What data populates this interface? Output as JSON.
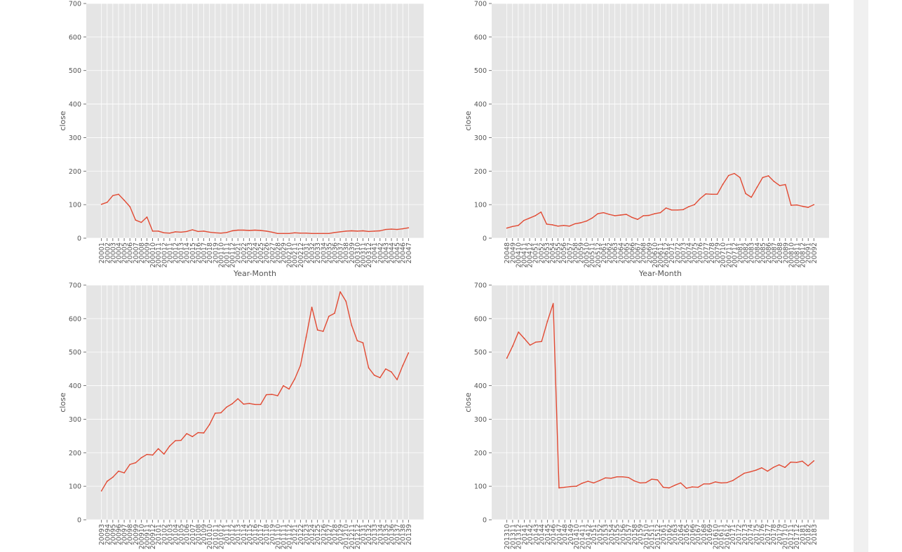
{
  "chart_data": [
    {
      "type": "line",
      "xlabel": "Year-Month",
      "ylabel": "close",
      "ylim": [
        0,
        700
      ],
      "yticks": [
        0,
        100,
        200,
        300,
        400,
        500,
        600,
        700
      ],
      "grid": true,
      "color": "#e24a33",
      "x": [
        "20001",
        "20002",
        "20003",
        "20004",
        "20005",
        "20006",
        "20007",
        "20008",
        "20009",
        "200010",
        "200011",
        "200012",
        "20011",
        "20012",
        "20013",
        "20014",
        "20015",
        "20016",
        "20017",
        "20018",
        "20019",
        "200110",
        "200111",
        "200112",
        "20021",
        "20022",
        "20023",
        "20024",
        "20025",
        "20026",
        "20027",
        "20028",
        "20029",
        "200210",
        "200211",
        "200212",
        "20031",
        "20032",
        "20033",
        "20034",
        "20035",
        "20036",
        "20037",
        "20038",
        "20039",
        "200310",
        "200311",
        "200312",
        "20041",
        "20042",
        "20043",
        "20044",
        "20045",
        "20046",
        "20047"
      ],
      "values": [
        101,
        107,
        127,
        131,
        113,
        94,
        54,
        47,
        63,
        21,
        21,
        16,
        15,
        19,
        18,
        20,
        25,
        20,
        21,
        18,
        16,
        15,
        17,
        22,
        24,
        24,
        23,
        24,
        23,
        21,
        18,
        14,
        14,
        14,
        16,
        15,
        15,
        14,
        14,
        14,
        14,
        17,
        19,
        21,
        22,
        21,
        22,
        20,
        21,
        22,
        26,
        27,
        26,
        28,
        31
      ]
    },
    {
      "type": "line",
      "xlabel": "Year-Month",
      "ylabel": "close",
      "ylim": [
        0,
        700
      ],
      "yticks": [
        0,
        100,
        200,
        300,
        400,
        500,
        600,
        700
      ],
      "grid": true,
      "color": "#e24a33",
      "x": [
        "20048",
        "20049",
        "200410",
        "200411",
        "200412",
        "20051",
        "20052",
        "20053",
        "20054",
        "20055",
        "20056",
        "20057",
        "20058",
        "20059",
        "200510",
        "200511",
        "200512",
        "20061",
        "20062",
        "20063",
        "20064",
        "20065",
        "20066",
        "20067",
        "20068",
        "20069",
        "200610",
        "200611",
        "200612",
        "20071",
        "20072",
        "20073",
        "20074",
        "20075",
        "20076",
        "20077",
        "20078",
        "20079",
        "200710",
        "200711",
        "200712",
        "20081",
        "20082",
        "20083",
        "20084",
        "20085",
        "20086",
        "20087",
        "20088",
        "20089",
        "200810",
        "200811",
        "200812",
        "20091",
        "20092"
      ],
      "values": [
        30,
        35,
        38,
        53,
        60,
        67,
        78,
        42,
        40,
        36,
        38,
        36,
        43,
        46,
        51,
        60,
        73,
        76,
        71,
        67,
        69,
        71,
        62,
        56,
        67,
        68,
        73,
        76,
        90,
        84,
        84,
        85,
        94,
        100,
        118,
        132,
        131,
        131,
        161,
        187,
        193,
        181,
        133,
        122,
        152,
        181,
        186,
        169,
        157,
        160,
        98,
        99,
        95,
        92,
        100
      ]
    },
    {
      "type": "line",
      "xlabel": "",
      "ylabel": "close",
      "ylim": [
        0,
        700
      ],
      "yticks": [
        0,
        100,
        200,
        300,
        400,
        500,
        600,
        700
      ],
      "grid": true,
      "color": "#e24a33",
      "x": [
        "20093",
        "20094",
        "20095",
        "20096",
        "20097",
        "20098",
        "20099",
        "200910",
        "200911",
        "200912",
        "20101",
        "20102",
        "20103",
        "20104",
        "20105",
        "20106",
        "20107",
        "20108",
        "20109",
        "201010",
        "201011",
        "201012",
        "20111",
        "20112",
        "20113",
        "20114",
        "20115",
        "20116",
        "20117",
        "20118",
        "20119",
        "201110",
        "201111",
        "201112",
        "20121",
        "20122",
        "20123",
        "20124",
        "20125",
        "20126",
        "20127",
        "20128",
        "20129",
        "201210",
        "201211",
        "201212",
        "20131",
        "20132",
        "20133",
        "20134",
        "20135",
        "20136",
        "20137",
        "20138",
        "20139"
      ],
      "values": [
        86,
        115,
        127,
        145,
        140,
        165,
        170,
        185,
        195,
        193,
        212,
        196,
        220,
        236,
        237,
        257,
        248,
        260,
        259,
        284,
        318,
        319,
        336,
        346,
        361,
        345,
        347,
        344,
        344,
        373,
        374,
        370,
        400,
        390,
        420,
        460,
        545,
        634,
        566,
        562,
        607,
        616,
        680,
        652,
        580,
        534,
        528,
        453,
        431,
        424,
        450,
        441,
        418,
        460,
        498
      ]
    },
    {
      "type": "line",
      "xlabel": "",
      "ylabel": "close",
      "ylim": [
        0,
        700
      ],
      "yticks": [
        0,
        100,
        200,
        300,
        400,
        500,
        600,
        700
      ],
      "grid": true,
      "color": "#e24a33",
      "x": [
        "201310",
        "201311",
        "201312",
        "20141",
        "20142",
        "20143",
        "20144",
        "20145",
        "20146",
        "20147",
        "20148",
        "20149",
        "201410",
        "201411",
        "201412",
        "20151",
        "20152",
        "20153",
        "20154",
        "20155",
        "20156",
        "20157",
        "20158",
        "20159",
        "201510",
        "201511",
        "201512",
        "20161",
        "20162",
        "20163",
        "20164",
        "20165",
        "20166",
        "20167",
        "20168",
        "20169",
        "201610",
        "201611",
        "201612",
        "20171",
        "20172",
        "20173",
        "20174",
        "20175",
        "20176",
        "20177",
        "20178",
        "20179",
        "201710",
        "201711",
        "201712",
        "20181",
        "20182",
        "20183"
      ],
      "values": [
        482,
        518,
        560,
        541,
        521,
        530,
        532,
        592,
        645,
        95,
        97,
        99,
        100,
        109,
        115,
        110,
        117,
        125,
        124,
        128,
        128,
        126,
        116,
        110,
        111,
        121,
        119,
        97,
        95,
        103,
        110,
        94,
        98,
        97,
        107,
        107,
        113,
        110,
        111,
        117,
        128,
        139,
        143,
        148,
        155,
        145,
        156,
        164,
        156,
        172,
        171,
        175,
        161,
        176
      ]
    }
  ]
}
